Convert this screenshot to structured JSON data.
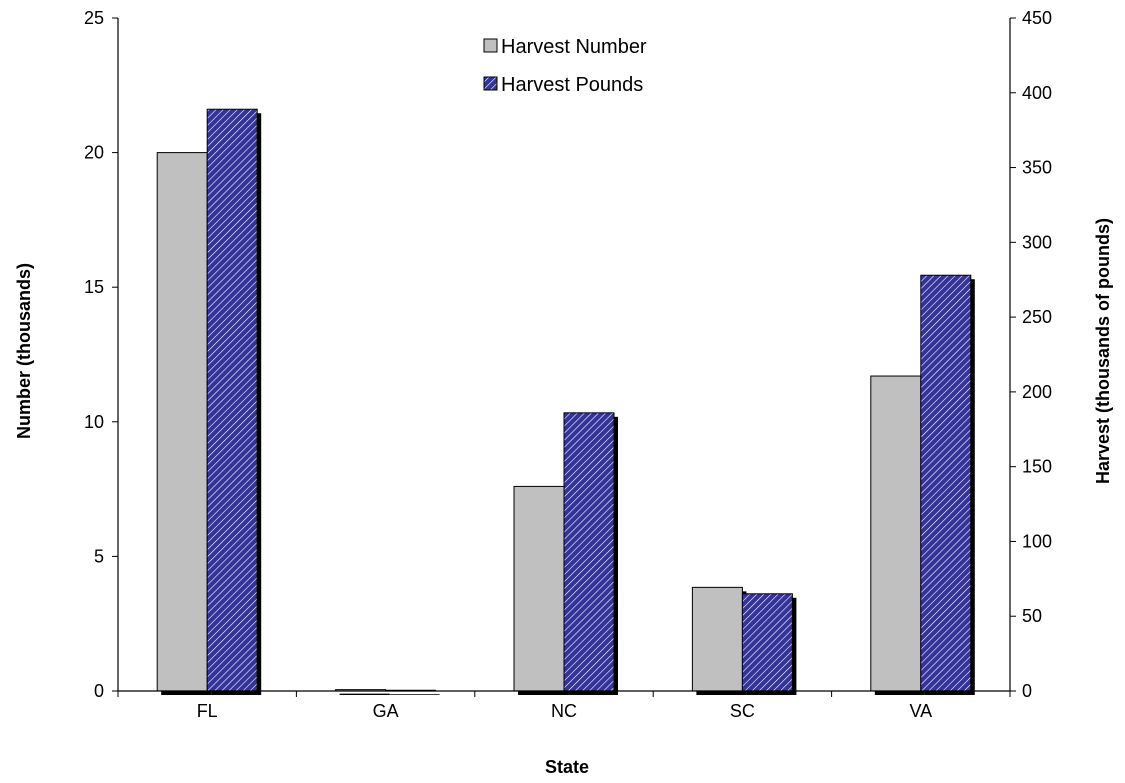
{
  "chart_data": {
    "type": "bar",
    "categories": [
      "FL",
      "GA",
      "NC",
      "SC",
      "VA"
    ],
    "xlabel": "State",
    "series": [
      {
        "name": "Harvest Number",
        "axis": "left",
        "values": [
          20.0,
          0.05,
          7.6,
          3.85,
          11.7
        ],
        "color": "#c0c0c0",
        "pattern": "solid"
      },
      {
        "name": "Harvest Pounds",
        "axis": "right",
        "values": [
          389,
          0.5,
          186,
          65,
          278
        ],
        "color": "#33339a",
        "pattern": "diagonal-hatch"
      }
    ],
    "y_left": {
      "label": "Number (thousands)",
      "range": [
        0,
        25
      ],
      "ticks": [
        "0",
        "5",
        "10",
        "15",
        "20",
        "25"
      ]
    },
    "y_right": {
      "label": "Harvest (thousands of pounds)",
      "range": [
        0,
        450
      ],
      "ticks": [
        "0",
        "50",
        "100",
        "150",
        "200",
        "250",
        "300",
        "350",
        "400",
        "450"
      ]
    },
    "grid": false,
    "legend_position": "top-center",
    "colors": {
      "axis": "#000000",
      "text": "#000000",
      "shadow": "#000000",
      "hatch_line": "#ffffff"
    }
  }
}
